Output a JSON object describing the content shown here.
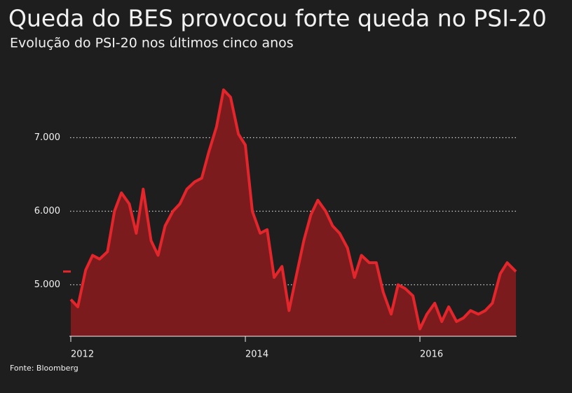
{
  "chart_data": {
    "type": "area",
    "title": "Queda do BES provocou forte queda no PSI-20",
    "subtitle": "Evolução do PSI-20 nos últimos cinco anos",
    "source": "Fonte: Bloomberg",
    "x": [
      2012,
      2012.08,
      2012.17,
      2012.25,
      2012.33,
      2012.42,
      2012.5,
      2012.58,
      2012.67,
      2012.75,
      2012.83,
      2012.92,
      2013,
      2013.08,
      2013.17,
      2013.25,
      2013.33,
      2013.42,
      2013.5,
      2013.58,
      2013.67,
      2013.75,
      2013.83,
      2013.92,
      2014,
      2014.08,
      2014.17,
      2014.25,
      2014.33,
      2014.42,
      2014.5,
      2014.58,
      2014.67,
      2014.75,
      2014.83,
      2014.92,
      2015,
      2015.08,
      2015.17,
      2015.25,
      2015.33,
      2015.42,
      2015.5,
      2015.58,
      2015.67,
      2015.75,
      2015.83,
      2015.92,
      2016,
      2016.08,
      2016.17,
      2016.25,
      2016.33,
      2016.42,
      2016.5,
      2016.58,
      2016.67,
      2016.75,
      2016.83,
      2016.92,
      2017,
      2017.1
    ],
    "series": [
      {
        "name": "PSI-20",
        "color": "#e3262b",
        "fill": "#7b1b1d",
        "values": [
          4800,
          4700,
          5200,
          5400,
          5350,
          5450,
          6000,
          6250,
          6100,
          5700,
          6300,
          5600,
          5400,
          5800,
          6000,
          6100,
          6300,
          6400,
          6450,
          6800,
          7150,
          7650,
          7550,
          7050,
          6900,
          6000,
          5700,
          5750,
          5100,
          5250,
          4650,
          5100,
          5600,
          5950,
          6150,
          6000,
          5800,
          5700,
          5500,
          5100,
          5400,
          5300,
          5300,
          4900,
          4600,
          5000,
          4950,
          4850,
          4400,
          4600,
          4750,
          4500,
          4700,
          4500,
          4550,
          4650,
          4600,
          4650,
          4750,
          5150,
          5300,
          5180
        ]
      }
    ],
    "xlim": [
      2012,
      2017.1
    ],
    "xticks": [
      2012,
      2014,
      2016
    ],
    "ylim": [
      4300,
      7800
    ],
    "yticks": [
      {
        "value": 5000,
        "label": "5.000"
      },
      {
        "value": 6000,
        "label": "6.000"
      },
      {
        "value": 7000,
        "label": "7.000"
      }
    ],
    "grid": true
  }
}
